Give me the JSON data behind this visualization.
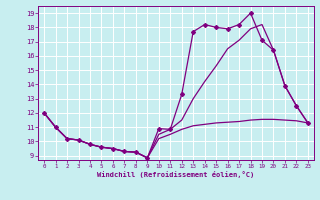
{
  "xlabel": "Windchill (Refroidissement éolien,°C)",
  "bg_color": "#c8eef0",
  "line_color": "#800080",
  "xlim": [
    -0.5,
    23.5
  ],
  "ylim": [
    8.7,
    19.5
  ],
  "xticks": [
    0,
    1,
    2,
    3,
    4,
    5,
    6,
    7,
    8,
    9,
    10,
    11,
    12,
    13,
    14,
    15,
    16,
    17,
    18,
    19,
    20,
    21,
    22,
    23
  ],
  "yticks": [
    9,
    10,
    11,
    12,
    13,
    14,
    15,
    16,
    17,
    18,
    19
  ],
  "grid_color": "#ffffff",
  "curve1_x": [
    0,
    1,
    2,
    3,
    4,
    5,
    6,
    7,
    8,
    9,
    10,
    11,
    12,
    13,
    14,
    15,
    16,
    17,
    18,
    19,
    20,
    21,
    22,
    23
  ],
  "curve1_y": [
    12,
    11,
    10.2,
    10.1,
    9.8,
    9.6,
    9.5,
    9.3,
    9.25,
    8.85,
    10.9,
    10.85,
    13.3,
    17.7,
    18.2,
    18.0,
    17.9,
    18.2,
    19.0,
    17.1,
    16.4,
    13.9,
    12.5,
    11.3
  ],
  "curve2_x": [
    0,
    1,
    2,
    3,
    4,
    5,
    6,
    7,
    8,
    9,
    10,
    11,
    12,
    13,
    14,
    15,
    16,
    17,
    18,
    19,
    20,
    21,
    22,
    23
  ],
  "curve2_y": [
    12,
    11,
    10.2,
    10.1,
    9.8,
    9.6,
    9.5,
    9.3,
    9.25,
    8.85,
    10.5,
    10.85,
    11.5,
    13.0,
    14.2,
    15.3,
    16.5,
    17.1,
    17.9,
    18.2,
    16.4,
    13.9,
    12.5,
    11.3
  ],
  "curve3_x": [
    0,
    1,
    2,
    3,
    4,
    5,
    6,
    7,
    8,
    9,
    10,
    11,
    12,
    13,
    14,
    15,
    16,
    17,
    18,
    19,
    20,
    21,
    22,
    23
  ],
  "curve3_y": [
    12,
    11,
    10.2,
    10.1,
    9.8,
    9.6,
    9.5,
    9.3,
    9.25,
    8.85,
    10.2,
    10.5,
    10.85,
    11.1,
    11.2,
    11.3,
    11.35,
    11.4,
    11.5,
    11.55,
    11.55,
    11.5,
    11.45,
    11.3
  ]
}
